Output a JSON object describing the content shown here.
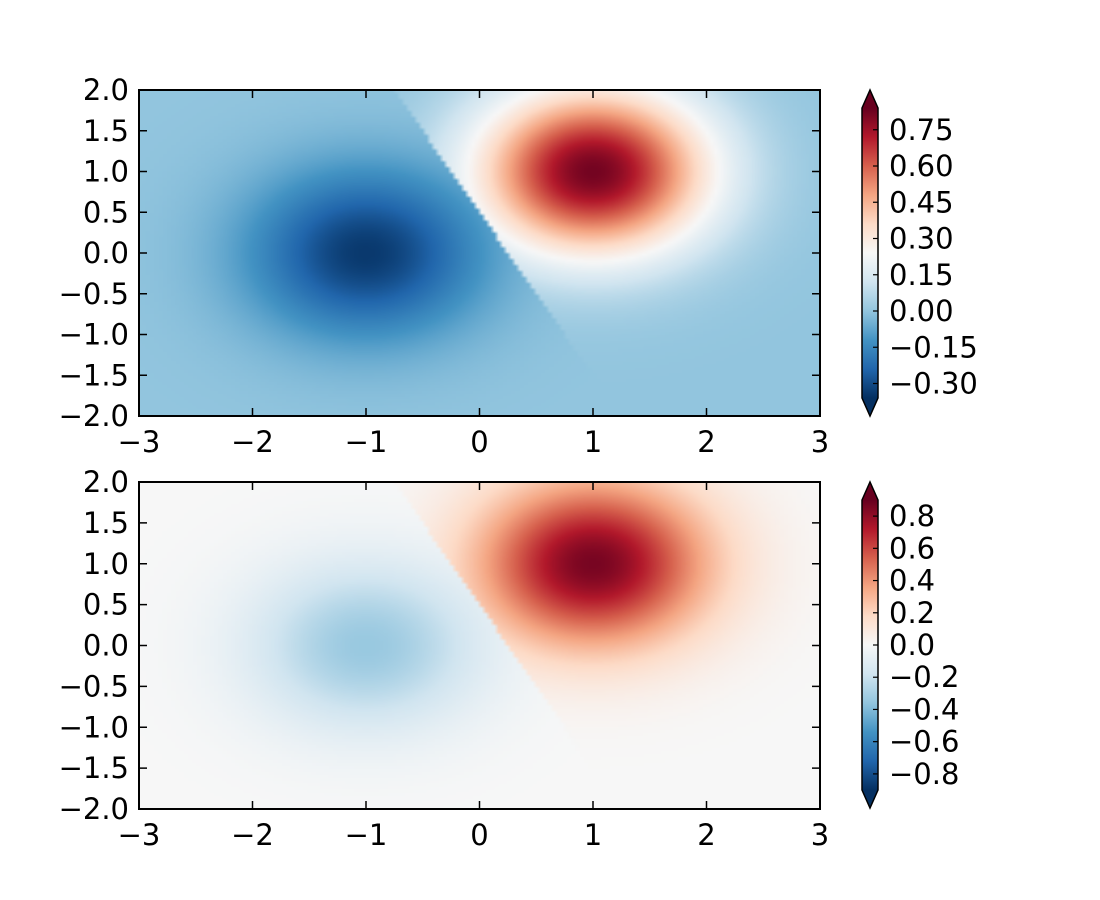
{
  "chart_data": [
    {
      "type": "heatmap",
      "title": "",
      "xlabel": "",
      "ylabel": "",
      "xlim": [
        -3,
        3
      ],
      "ylim": [
        -2,
        2
      ],
      "x_ticks": [
        -3,
        -2,
        -1,
        0,
        1,
        2,
        3
      ],
      "x_tick_labels": [
        "−3",
        "−2",
        "−1",
        "0",
        "1",
        "2",
        "3"
      ],
      "y_ticks": [
        2.0,
        1.5,
        1.0,
        0.5,
        0.0,
        -0.5,
        -1.0,
        -1.5,
        -2.0
      ],
      "y_tick_labels": [
        "2.0",
        "1.5",
        "1.0",
        "0.5",
        "0.0",
        "−0.5",
        "−1.0",
        "−1.5",
        "−2.0"
      ],
      "colormap": "RdBu_r",
      "positive_peak": {
        "x": 1,
        "y": 1,
        "value": 0.82
      },
      "negative_peak": {
        "x": -1,
        "y": 0,
        "value": -0.34
      },
      "colorbar": {
        "extend": "both",
        "vmin": -0.36,
        "vmax": 0.84,
        "ticks": [
          0.75,
          0.6,
          0.45,
          0.3,
          0.15,
          0.0,
          -0.15,
          -0.3
        ],
        "tick_labels": [
          "0.75",
          "0.60",
          "0.45",
          "0.30",
          "0.15",
          "0.00",
          "−0.15",
          "−0.30"
        ]
      }
    },
    {
      "type": "heatmap",
      "title": "",
      "xlabel": "",
      "ylabel": "",
      "xlim": [
        -3,
        3
      ],
      "ylim": [
        -2,
        2
      ],
      "x_ticks": [
        -3,
        -2,
        -1,
        0,
        1,
        2,
        3
      ],
      "x_tick_labels": [
        "−3",
        "−2",
        "−1",
        "0",
        "1",
        "2",
        "3"
      ],
      "y_ticks": [
        2.0,
        1.5,
        1.0,
        0.5,
        0.0,
        -0.5,
        -1.0,
        -1.5,
        -2.0
      ],
      "y_tick_labels": [
        "2.0",
        "1.5",
        "1.0",
        "0.5",
        "0.0",
        "−0.5",
        "−1.0",
        "−1.5",
        "−2.0"
      ],
      "colormap": "RdBu_r",
      "positive_peak": {
        "x": 1,
        "y": 1,
        "value": 0.86
      },
      "negative_peak": {
        "x": -1,
        "y": 0,
        "value": -0.34
      },
      "colorbar": {
        "extend": "both",
        "vmin": -0.9,
        "vmax": 0.9,
        "ticks": [
          0.8,
          0.6,
          0.4,
          0.2,
          0.0,
          -0.2,
          -0.4,
          -0.6,
          -0.8
        ],
        "tick_labels": [
          "0.8",
          "0.6",
          "0.4",
          "0.2",
          "0.0",
          "−0.2",
          "−0.4",
          "−0.6",
          "−0.8"
        ]
      }
    }
  ],
  "colors": {
    "colormap_stops": [
      "#053061",
      "#2166ac",
      "#4393c3",
      "#92c5de",
      "#d1e5f0",
      "#f7f7f7",
      "#fddbc7",
      "#f4a582",
      "#d6604d",
      "#b2182b",
      "#67001f"
    ]
  }
}
